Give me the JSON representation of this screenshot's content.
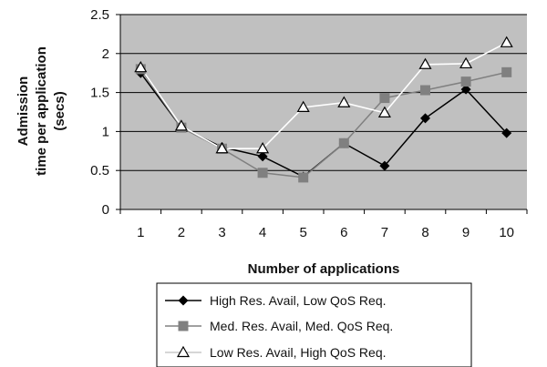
{
  "chart_data": {
    "type": "line",
    "title": "",
    "xlabel": "Number of applications",
    "ylabel_lines": [
      "Admission",
      "time per application",
      "(secs)"
    ],
    "x": [
      1,
      2,
      3,
      4,
      5,
      6,
      7,
      8,
      9,
      10
    ],
    "x_tick_labels": [
      "1",
      "2",
      "3",
      "4",
      "5",
      "6",
      "7",
      "8",
      "9",
      "10"
    ],
    "ylim": [
      0,
      2.5
    ],
    "y_ticks": [
      0,
      0.5,
      1,
      1.5,
      2,
      2.5
    ],
    "y_tick_labels": [
      "0",
      "0.5",
      "1",
      "1.5",
      "2",
      "2.5"
    ],
    "grid": true,
    "plot_background": "#c0c0c0",
    "legend_position": "bottom",
    "series": [
      {
        "name": "High Res. Avail, Low QoS Req.",
        "values": [
          1.75,
          1.05,
          0.8,
          0.68,
          0.42,
          0.85,
          0.56,
          1.17,
          1.54,
          0.98
        ],
        "color": "#000000",
        "marker": "diamond"
      },
      {
        "name": "Med. Res. Avail, Med. QoS Req.",
        "values": [
          1.8,
          1.05,
          0.78,
          0.47,
          0.41,
          0.85,
          1.43,
          1.53,
          1.64,
          1.76
        ],
        "color": "#808080",
        "marker": "square"
      },
      {
        "name": "Low Res. Avail, High QoS Req.",
        "values": [
          1.82,
          1.07,
          0.78,
          0.78,
          1.31,
          1.37,
          1.24,
          1.86,
          1.87,
          2.14
        ],
        "color": "#ffffff",
        "marker": "triangle"
      }
    ]
  }
}
